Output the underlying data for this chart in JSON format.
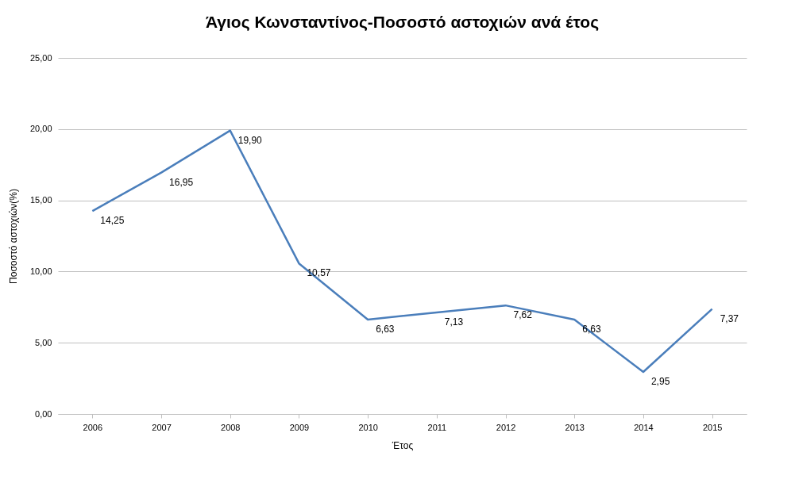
{
  "chart_data": {
    "type": "line",
    "title": "Άγιος Κωνσταντίνος-Ποσοστό αστοχιών ανά έτος",
    "xlabel": "Έτος",
    "ylabel": "Ποσοστό αστοχιών(%)",
    "categories": [
      "2006",
      "2007",
      "2008",
      "2009",
      "2010",
      "2011",
      "2012",
      "2013",
      "2014",
      "2015"
    ],
    "series": [
      {
        "color": "#4a7ebb",
        "values": [
          14.25,
          16.95,
          19.9,
          10.57,
          6.63,
          7.13,
          7.62,
          6.63,
          2.95,
          7.37
        ],
        "value_labels": [
          "14,25",
          "16,95",
          "19,90",
          "10,57",
          "6,63",
          "7,13",
          "7,62",
          "6,63",
          "2,95",
          "7,37"
        ]
      }
    ],
    "ylim": [
      0,
      25
    ],
    "yticks": [
      {
        "value": 0,
        "label": "0,00"
      },
      {
        "value": 5,
        "label": "5,00"
      },
      {
        "value": 10,
        "label": "10,00"
      },
      {
        "value": 15,
        "label": "15,00"
      },
      {
        "value": 20,
        "label": "20,00"
      },
      {
        "value": 25,
        "label": "25,00"
      }
    ],
    "grid": "y",
    "marker": "none",
    "line_style": "solid"
  }
}
